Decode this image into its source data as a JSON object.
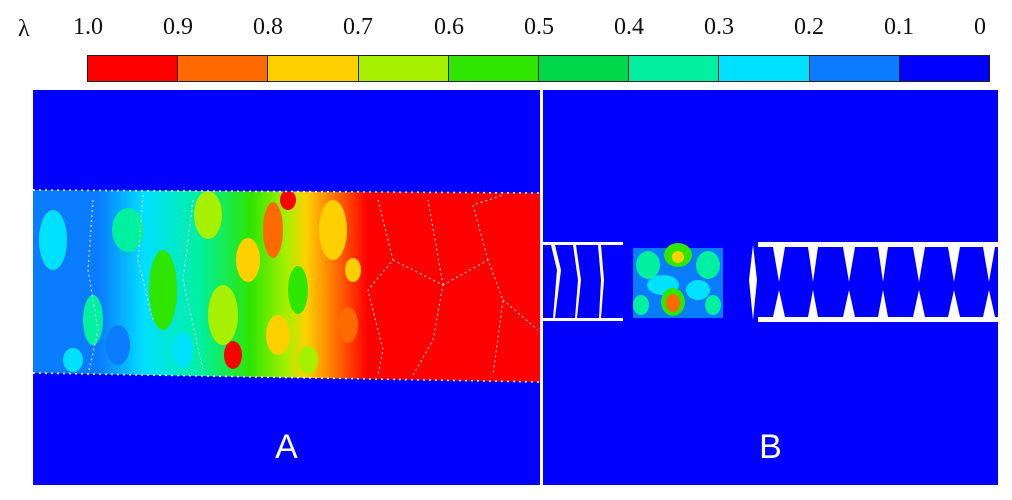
{
  "colorbar": {
    "symbol": "λ",
    "ticks": [
      "1.0",
      "0.9",
      "0.8",
      "0.7",
      "0.6",
      "0.5",
      "0.4",
      "0.3",
      "0.2",
      "0.1",
      "0"
    ],
    "colors": [
      "#ff0000",
      "#ff6a00",
      "#ffd000",
      "#a6f000",
      "#2ee600",
      "#00d84a",
      "#00f0a0",
      "#00e0ff",
      "#0a7cff",
      "#0000ff"
    ]
  },
  "panels": [
    {
      "label": "A"
    },
    {
      "label": "B"
    }
  ]
}
